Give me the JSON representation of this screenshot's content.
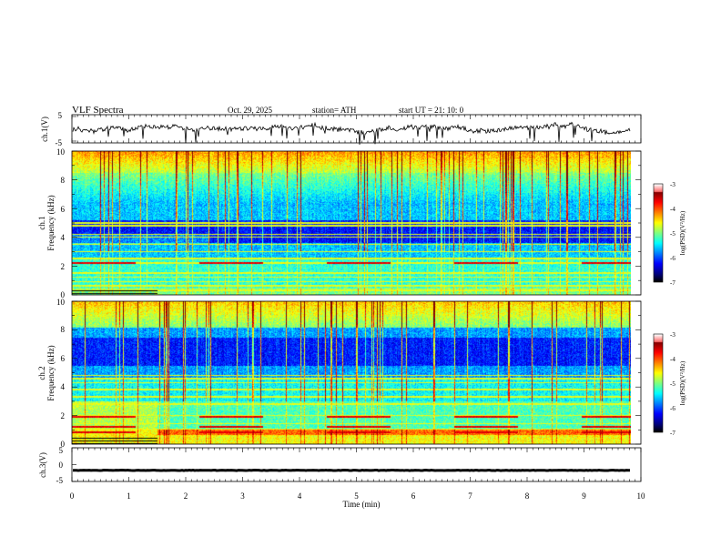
{
  "header": {
    "title": "VLF  Spectra",
    "date": "Oct. 29, 2025",
    "station": "station= ATH",
    "start": "start  UT  =    21: 10: 0"
  },
  "chart_data": [
    {
      "type": "line",
      "name": "ch1-waveform",
      "ylabel": "ch.1(V)",
      "ylim": [
        -5,
        5
      ],
      "yticks": [
        "5",
        "-5"
      ],
      "xlim": [
        0,
        10
      ],
      "mean_level": 0.2,
      "noise_amplitude": 1.5
    },
    {
      "type": "heatmap",
      "name": "ch1-spectrogram",
      "ylabel": "ch.1\nFrequency  (kHz)",
      "ylabel_lines": [
        "ch.1",
        "Frequency  (kHz)"
      ],
      "ylim": [
        0,
        10
      ],
      "yticks": [
        "0",
        "2",
        "4",
        "6",
        "8",
        "10"
      ],
      "xlim": [
        0,
        9.8
      ],
      "colorbar": {
        "label": "log(PSD)(V²/Hz)",
        "range": [
          -7,
          -3
        ],
        "ticks": [
          "-3",
          "-4",
          "-5",
          "-6",
          "-7"
        ]
      },
      "features": {
        "band_transition_min": 1.5,
        "dark_band_khz": [
          3.6,
          5.2
        ],
        "noisy_band_khz": [
          0.5,
          2.6
        ],
        "tone_lines_khz": [
          0.3,
          0.6,
          0.9,
          1.2,
          1.5,
          2.2,
          2.5,
          3.0,
          3.5,
          4.0,
          4.2,
          4.8,
          5.0
        ],
        "red_lines_khz": [
          2.2
        ]
      }
    },
    {
      "type": "heatmap",
      "name": "ch2-spectrogram",
      "ylabel": "ch.2\nFrequency  (kHz)",
      "ylabel_lines": [
        "ch.2",
        "Frequency  (kHz)"
      ],
      "ylim": [
        0,
        10
      ],
      "yticks": [
        "0",
        "2",
        "4",
        "6",
        "8",
        "10"
      ],
      "xlim": [
        0,
        9.8
      ],
      "colorbar": {
        "label": "log(PSD)(V²/Hz)",
        "range": [
          -7,
          -3
        ],
        "ticks": [
          "-3",
          "-4",
          "-5",
          "-6",
          "-7"
        ]
      },
      "features": {
        "band_transition_min": 1.5,
        "dark_band_khz": [
          5.5,
          7.5
        ],
        "noisy_band_khz": [
          0.5,
          3.0
        ],
        "tone_lines_khz": [
          0.6,
          1.0,
          1.4,
          2.0,
          2.8,
          3.3,
          3.8,
          4.3,
          4.6,
          4.8
        ],
        "red_lines_khz": [
          0.8,
          1.2,
          1.9
        ]
      }
    },
    {
      "type": "line",
      "name": "ch3-waveform",
      "ylabel": "ch.3(V)",
      "ylim": [
        -5,
        5
      ],
      "yticks": [
        "5",
        "0",
        "-5"
      ],
      "xlim": [
        0,
        10
      ],
      "xlabel": "Time  (min)",
      "xticks": [
        "0",
        "1",
        "2",
        "3",
        "4",
        "5",
        "6",
        "7",
        "8",
        "9",
        "10"
      ],
      "mean_level": -1.7,
      "noise_amplitude": 0.15
    }
  ]
}
